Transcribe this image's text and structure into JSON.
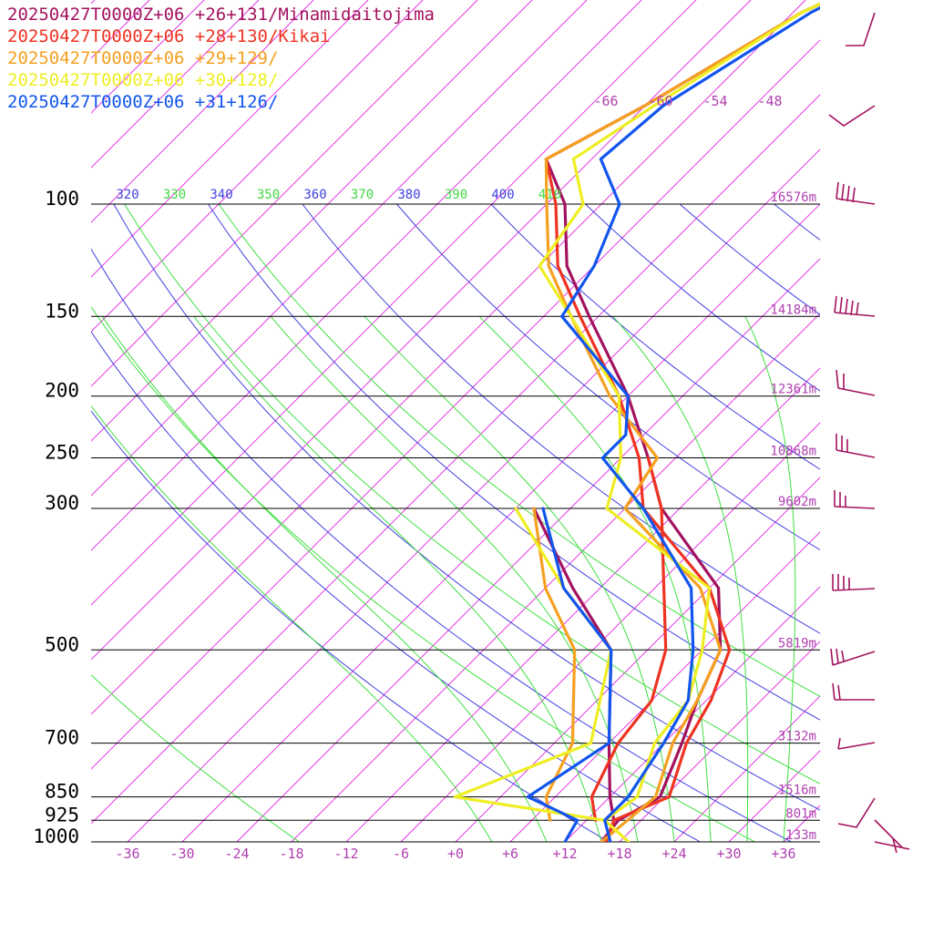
{
  "chart_data": {
    "type": "line",
    "subtype": "skew-T log-P diagram",
    "legend": [
      {
        "label": "20250427T0000Z+06 +26+131/Minamidaitojima",
        "color": "#a3125f"
      },
      {
        "label": "20250427T0000Z+06 +28+130/Kikai",
        "color": "#ee3322"
      },
      {
        "label": "20250427T0000Z+06 +29+129/",
        "color": "#f5a020"
      },
      {
        "label": "20250427T0000Z+06 +30+128/",
        "color": "#eeee22"
      },
      {
        "label": "20250427T0000Z+06 +31+126/",
        "color": "#1155ee"
      }
    ],
    "pressure_levels": [
      {
        "p": 100,
        "label": "100",
        "height": "16576m"
      },
      {
        "p": 150,
        "label": "150",
        "height": "14184m"
      },
      {
        "p": 200,
        "label": "200",
        "height": "12361m"
      },
      {
        "p": 250,
        "label": "250",
        "height": "10868m"
      },
      {
        "p": 300,
        "label": "300",
        "height": "9602m"
      },
      {
        "p": 500,
        "label": "500",
        "height": "5819m"
      },
      {
        "p": 700,
        "label": "700",
        "height": "3132m"
      },
      {
        "p": 850,
        "label": "850",
        "height": "1516m"
      },
      {
        "p": 925,
        "label": "925",
        "height": "801m"
      },
      {
        "p": 1000,
        "label": "1000",
        "height": "133m"
      }
    ],
    "x_ticks": [
      "-36",
      "-30",
      "-24",
      "-18",
      "-12",
      "-6",
      "+0",
      "+6",
      "+12",
      "+18",
      "+24",
      "+30",
      "+36"
    ],
    "upper_temp_labels": [
      "-66",
      "-60",
      "-54",
      "-48"
    ],
    "theta_labels": [
      {
        "label": "320",
        "color": "#4040e0"
      },
      {
        "label": "330",
        "color": "#40d840"
      },
      {
        "label": "340",
        "color": "#4040e0"
      },
      {
        "label": "350",
        "color": "#40d840"
      },
      {
        "label": "360",
        "color": "#4040e0"
      },
      {
        "label": "370",
        "color": "#40d840"
      },
      {
        "label": "380",
        "color": "#4040e0"
      },
      {
        "label": "390",
        "color": "#40d840"
      },
      {
        "label": "400",
        "color": "#4040e0"
      },
      {
        "label": "410",
        "color": "#40d840"
      }
    ],
    "ylim_hpa": [
      1000,
      100
    ],
    "xlim_c": [
      -40,
      40
    ],
    "colors": {
      "isotherm": "#e020e0",
      "isobar": "#000000",
      "dry_adiabat": "#4040e0",
      "moist_adiabat": "#40e040",
      "text_magenta": "#b040b0",
      "wind_barb": "#a3125f"
    },
    "series": [
      {
        "color": "#a3125f",
        "type": "temperature",
        "points": [
          [
            1000,
            16
          ],
          [
            925,
            15.5
          ],
          [
            850,
            17.5
          ],
          [
            700,
            14
          ],
          [
            600,
            11
          ],
          [
            500,
            8
          ],
          [
            400,
            1
          ],
          [
            300,
            -14
          ],
          [
            250,
            -21
          ],
          [
            200,
            -30
          ],
          [
            150,
            -43
          ],
          [
            125,
            -51
          ],
          [
            100,
            -58
          ],
          [
            85,
            -65
          ],
          [
            70,
            -60
          ],
          [
            50,
            -53
          ],
          [
            40,
            -45
          ]
        ]
      },
      {
        "color": "#a3125f",
        "type": "dewpoint",
        "points": [
          [
            925,
            15
          ],
          [
            850,
            12
          ],
          [
            700,
            6
          ],
          [
            500,
            -4
          ],
          [
            400,
            -15
          ],
          [
            300,
            -28
          ]
        ]
      },
      {
        "color": "#ee3322",
        "type": "temperature",
        "points": [
          [
            1000,
            16.5
          ],
          [
            925,
            15
          ],
          [
            850,
            18.5
          ],
          [
            700,
            14.5
          ],
          [
            600,
            12.5
          ],
          [
            500,
            9
          ],
          [
            400,
            0
          ],
          [
            300,
            -16
          ],
          [
            250,
            -22
          ],
          [
            200,
            -31
          ],
          [
            150,
            -44
          ],
          [
            125,
            -52
          ],
          [
            100,
            -59
          ],
          [
            85,
            -65
          ],
          [
            70,
            -60
          ],
          [
            50,
            -53
          ],
          [
            40,
            -45
          ]
        ]
      },
      {
        "color": "#ee3322",
        "type": "dewpoint",
        "points": [
          [
            925,
            13
          ],
          [
            850,
            10
          ],
          [
            700,
            7
          ],
          [
            600,
            6
          ],
          [
            500,
            2
          ],
          [
            400,
            -5
          ],
          [
            300,
            -14
          ],
          [
            250,
            -21
          ]
        ]
      },
      {
        "color": "#f5a020",
        "type": "temperature",
        "points": [
          [
            1000,
            16
          ],
          [
            925,
            16.5
          ],
          [
            850,
            17
          ],
          [
            700,
            13
          ],
          [
            600,
            11
          ],
          [
            500,
            8
          ],
          [
            400,
            -1
          ],
          [
            300,
            -18
          ],
          [
            250,
            -20
          ],
          [
            200,
            -32
          ],
          [
            150,
            -45
          ],
          [
            125,
            -53
          ],
          [
            100,
            -60
          ],
          [
            85,
            -65
          ],
          [
            70,
            -60
          ],
          [
            50,
            -53
          ],
          [
            40,
            -45
          ]
        ]
      },
      {
        "color": "#f5a020",
        "type": "dewpoint",
        "points": [
          [
            925,
            8
          ],
          [
            850,
            5
          ],
          [
            700,
            2
          ],
          [
            500,
            -8
          ],
          [
            400,
            -18
          ],
          [
            300,
            -28
          ]
        ]
      },
      {
        "color": "#eeee22",
        "type": "temperature",
        "points": [
          [
            1000,
            19
          ],
          [
            925,
            14
          ],
          [
            850,
            15
          ],
          [
            700,
            11
          ],
          [
            600,
            10
          ],
          [
            500,
            6
          ],
          [
            400,
            0
          ],
          [
            300,
            -20
          ],
          [
            250,
            -24
          ],
          [
            200,
            -31
          ],
          [
            150,
            -45
          ],
          [
            125,
            -54
          ],
          [
            100,
            -56
          ],
          [
            85,
            -62
          ],
          [
            70,
            -59
          ],
          [
            50,
            -53
          ],
          [
            40,
            -45
          ]
        ]
      },
      {
        "color": "#eeee22",
        "type": "dewpoint",
        "points": [
          [
            925,
            14
          ],
          [
            850,
            -5
          ],
          [
            700,
            4
          ],
          [
            500,
            -4
          ],
          [
            400,
            -16
          ],
          [
            300,
            -30
          ]
        ]
      },
      {
        "color": "#1155ee",
        "type": "temperature",
        "points": [
          [
            1000,
            17
          ],
          [
            925,
            14
          ],
          [
            850,
            14
          ],
          [
            700,
            12
          ],
          [
            600,
            10
          ],
          [
            500,
            5
          ],
          [
            400,
            -2
          ],
          [
            300,
            -16
          ],
          [
            250,
            -26
          ],
          [
            230,
            -26
          ],
          [
            200,
            -30
          ],
          [
            150,
            -46
          ],
          [
            125,
            -48
          ],
          [
            100,
            -52
          ],
          [
            85,
            -59
          ],
          [
            70,
            -58
          ],
          [
            50,
            -52
          ],
          [
            40,
            -45
          ]
        ]
      },
      {
        "color": "#1155ee",
        "type": "dewpoint",
        "points": [
          [
            1000,
            12
          ],
          [
            925,
            11
          ],
          [
            850,
            3
          ],
          [
            700,
            6
          ],
          [
            500,
            -4
          ],
          [
            400,
            -16
          ],
          [
            300,
            -27
          ]
        ]
      }
    ]
  }
}
